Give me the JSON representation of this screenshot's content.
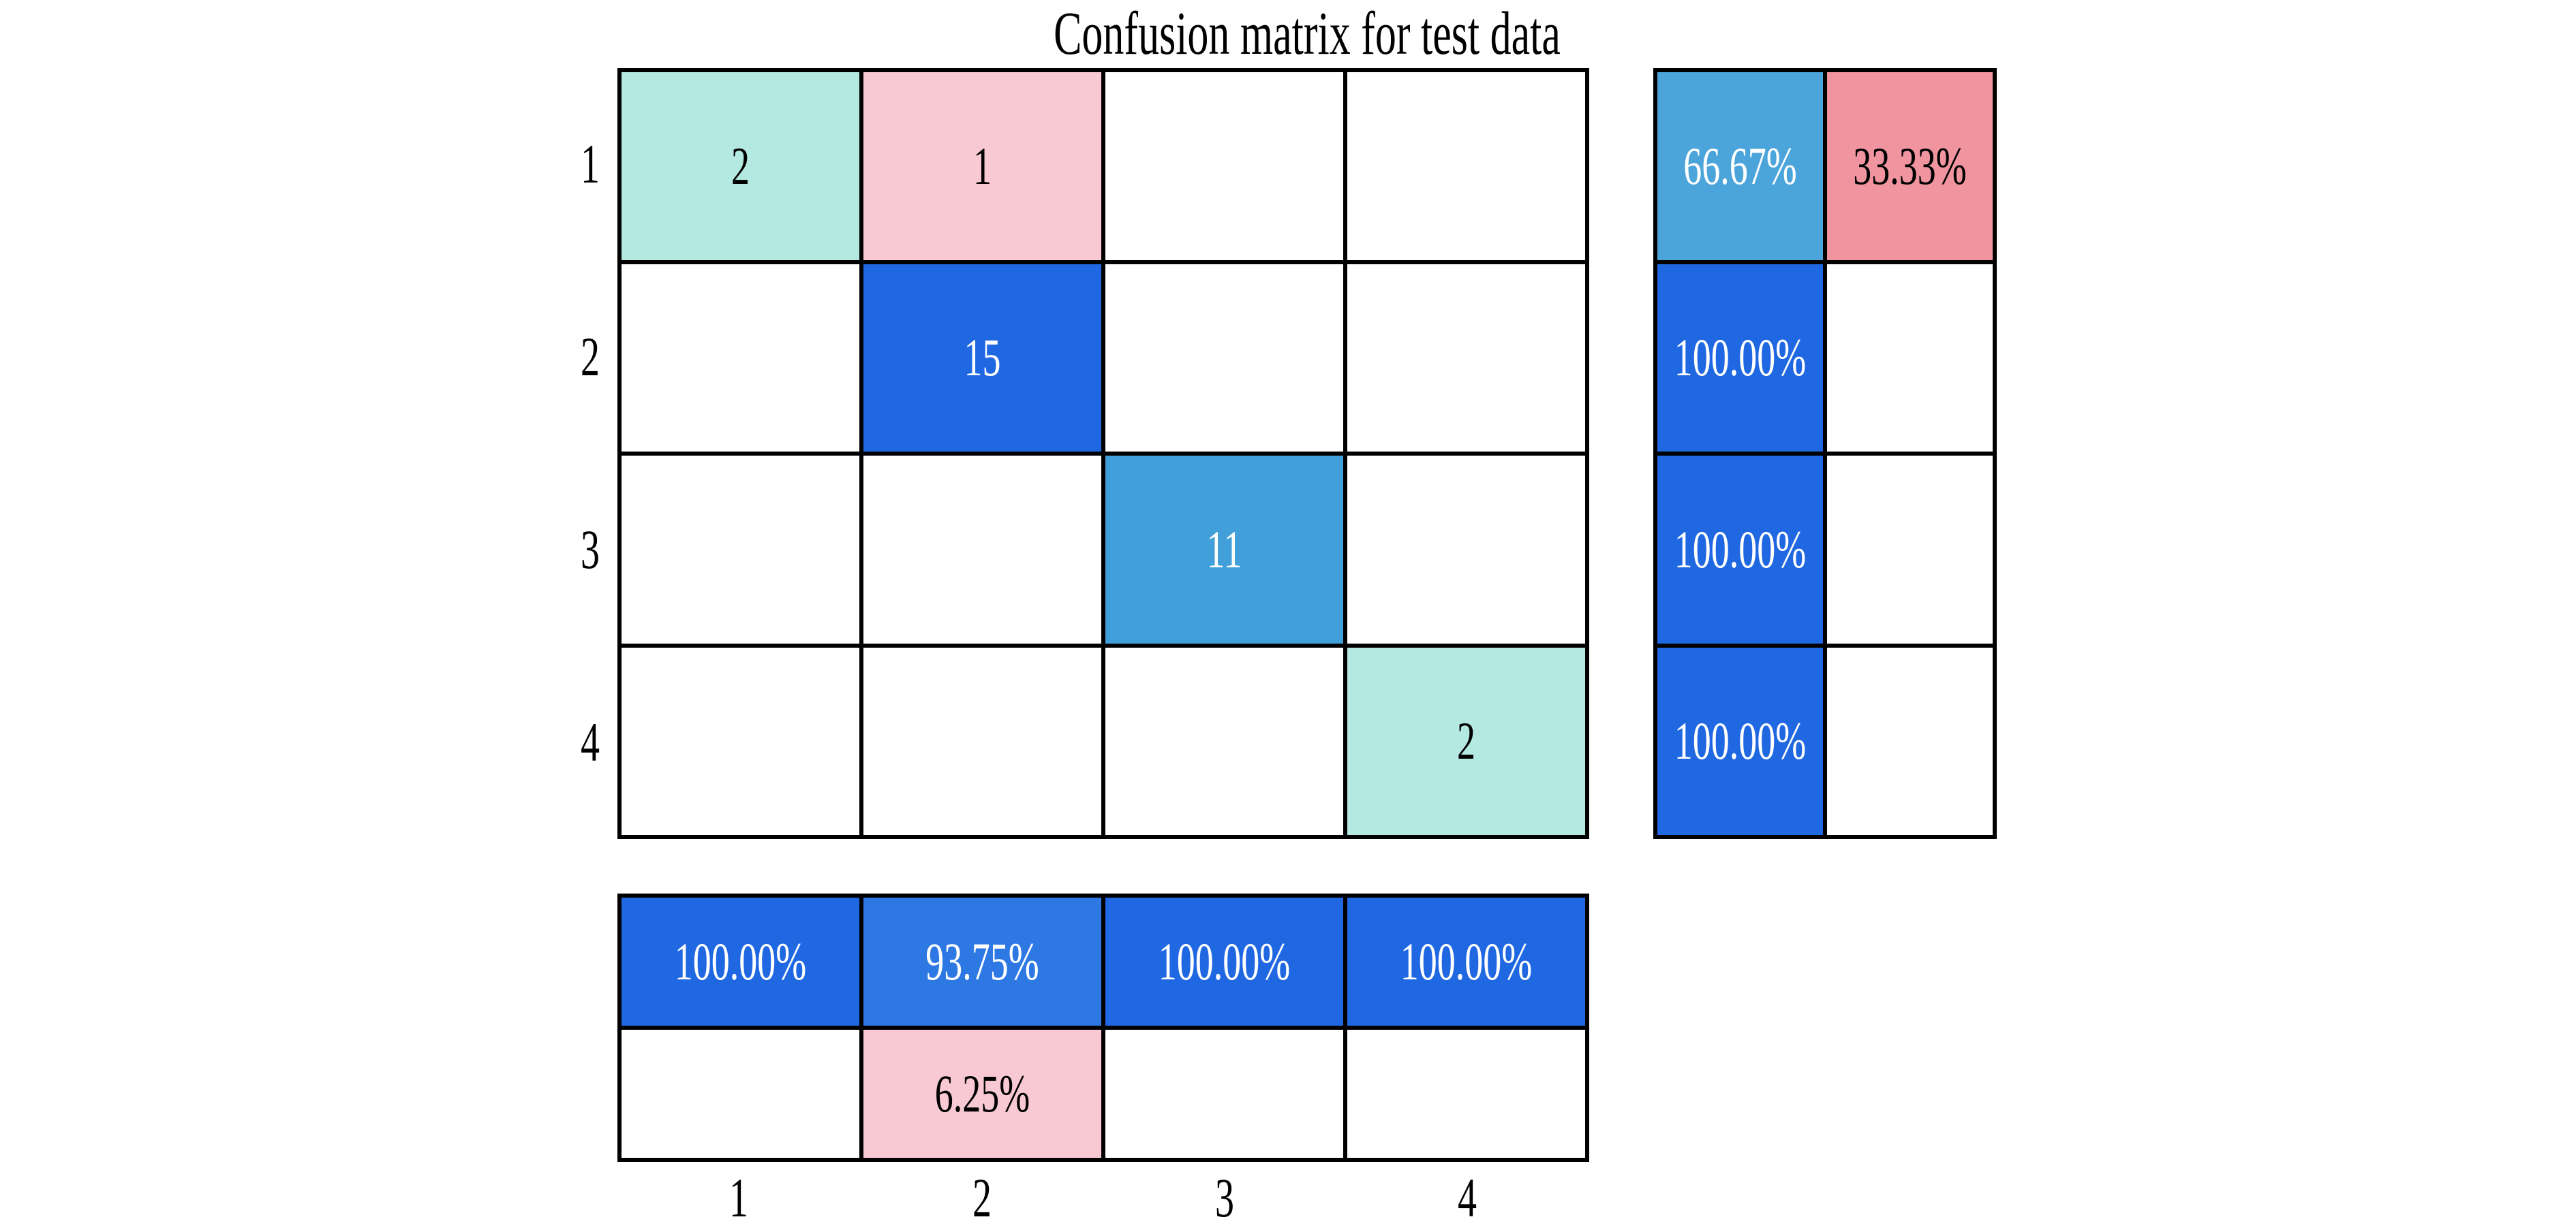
{
  "title": "Confusion matrix for test data",
  "palette": {
    "teal": "#b4e9e2",
    "pink": "#f8c9d3",
    "blue_strong": "#2068e2",
    "blue_93": "#2e78e4",
    "sky": "#41a0da",
    "sky_66": "#4ba4da",
    "salmon": "#f0959f",
    "white": "#ffffff",
    "grid_line": "#000000",
    "text_light": "#ffffff",
    "text_dark": "#000000"
  },
  "chart_data": {
    "type": "heatmap",
    "title": "Confusion matrix for test data",
    "classes": [
      "1",
      "2",
      "3",
      "4"
    ],
    "matrix": [
      [
        2,
        1,
        0,
        0
      ],
      [
        0,
        15,
        0,
        0
      ],
      [
        0,
        0,
        11,
        0
      ],
      [
        0,
        0,
        0,
        2
      ]
    ],
    "row_summary_percent": [
      [
        66.67,
        33.33
      ],
      [
        100.0,
        0
      ],
      [
        100.0,
        0
      ],
      [
        100.0,
        0
      ]
    ],
    "col_summary_percent": [
      [
        100.0,
        0
      ],
      [
        93.75,
        6.25
      ],
      [
        100.0,
        0
      ],
      [
        100.0,
        0
      ]
    ],
    "layout": {
      "row_summary_position": "right",
      "col_summary_position": "bottom",
      "row_labels_position": "left",
      "col_labels_position": "bottom",
      "grid_lines": "on"
    }
  },
  "row_labels": [
    "1",
    "2",
    "3",
    "4"
  ],
  "col_labels": [
    "1",
    "2",
    "3",
    "4"
  ],
  "grid": {
    "cells": [
      {
        "v": "2",
        "bg": "teal",
        "fg": "text_dark"
      },
      {
        "v": "1",
        "bg": "pink",
        "fg": "text_dark"
      },
      {
        "v": "",
        "bg": "white",
        "fg": "text_dark"
      },
      {
        "v": "",
        "bg": "white",
        "fg": "text_dark"
      },
      {
        "v": "",
        "bg": "white",
        "fg": "text_dark"
      },
      {
        "v": "15",
        "bg": "blue_strong",
        "fg": "text_light"
      },
      {
        "v": "",
        "bg": "white",
        "fg": "text_dark"
      },
      {
        "v": "",
        "bg": "white",
        "fg": "text_dark"
      },
      {
        "v": "",
        "bg": "white",
        "fg": "text_dark"
      },
      {
        "v": "",
        "bg": "white",
        "fg": "text_dark"
      },
      {
        "v": "11",
        "bg": "sky",
        "fg": "text_light"
      },
      {
        "v": "",
        "bg": "white",
        "fg": "text_dark"
      },
      {
        "v": "",
        "bg": "white",
        "fg": "text_dark"
      },
      {
        "v": "",
        "bg": "white",
        "fg": "text_dark"
      },
      {
        "v": "",
        "bg": "white",
        "fg": "text_dark"
      },
      {
        "v": "2",
        "bg": "teal",
        "fg": "text_dark"
      }
    ]
  },
  "right": {
    "cells": [
      {
        "v": "66.67%",
        "bg": "sky_66",
        "fg": "text_light"
      },
      {
        "v": "33.33%",
        "bg": "salmon",
        "fg": "text_dark"
      },
      {
        "v": "100.00%",
        "bg": "blue_strong",
        "fg": "text_light"
      },
      {
        "v": "",
        "bg": "white",
        "fg": "text_dark"
      },
      {
        "v": "100.00%",
        "bg": "blue_strong",
        "fg": "text_light"
      },
      {
        "v": "",
        "bg": "white",
        "fg": "text_dark"
      },
      {
        "v": "100.00%",
        "bg": "blue_strong",
        "fg": "text_light"
      },
      {
        "v": "",
        "bg": "white",
        "fg": "text_dark"
      }
    ]
  },
  "bottom": {
    "cells": [
      {
        "v": "100.00%",
        "bg": "blue_strong",
        "fg": "text_light"
      },
      {
        "v": "93.75%",
        "bg": "blue_93",
        "fg": "text_light"
      },
      {
        "v": "100.00%",
        "bg": "blue_strong",
        "fg": "text_light"
      },
      {
        "v": "100.00%",
        "bg": "blue_strong",
        "fg": "text_light"
      },
      {
        "v": "",
        "bg": "white",
        "fg": "text_dark"
      },
      {
        "v": "6.25%",
        "bg": "pink",
        "fg": "text_dark"
      },
      {
        "v": "",
        "bg": "white",
        "fg": "text_dark"
      },
      {
        "v": "",
        "bg": "white",
        "fg": "text_dark"
      }
    ]
  }
}
